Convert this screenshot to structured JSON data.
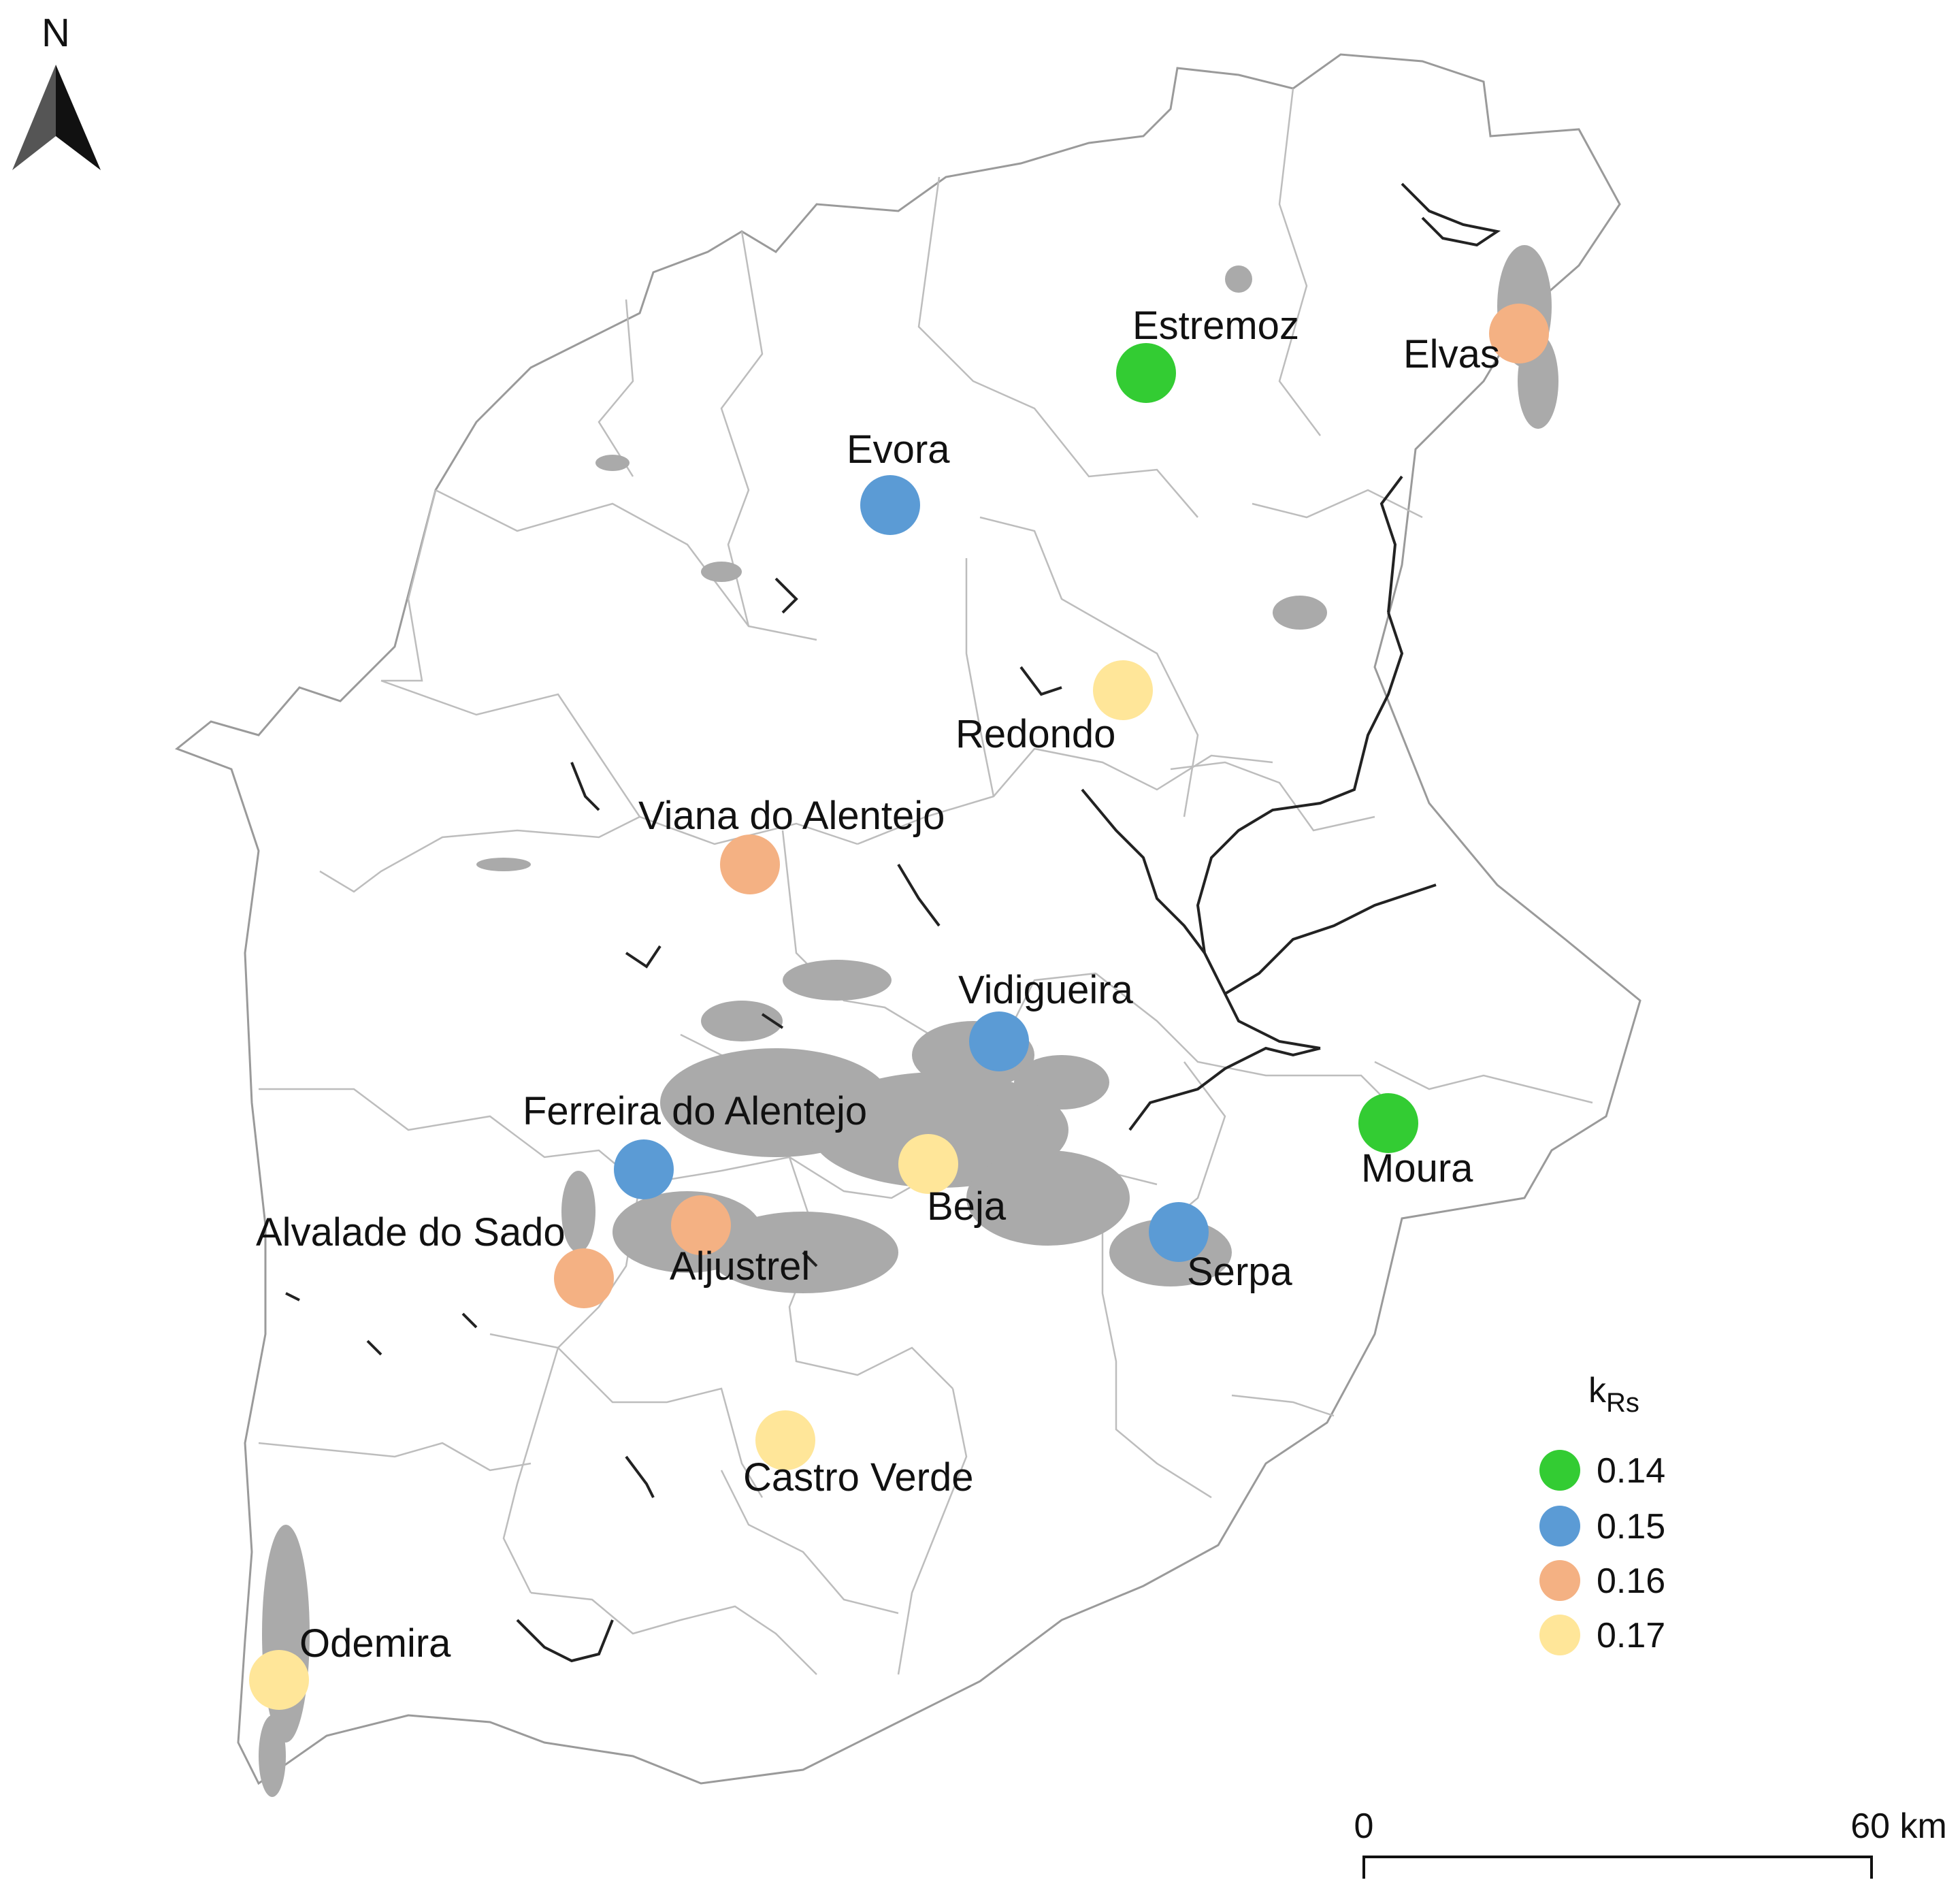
{
  "north_arrow": {
    "label": "N"
  },
  "legend": {
    "title_main": "k",
    "title_sub": "Rs",
    "items": [
      {
        "value": "0.14",
        "color": "#33cc33"
      },
      {
        "value": "0.15",
        "color": "#5b9bd5"
      },
      {
        "value": "0.16",
        "color": "#f4b183"
      },
      {
        "value": "0.17",
        "color": "#ffe699"
      }
    ]
  },
  "scale_bar": {
    "start": "0",
    "end": "60 km"
  },
  "stations": [
    {
      "name": "Estremoz",
      "kRs": 0.14
    },
    {
      "name": "Elvas",
      "kRs": 0.16
    },
    {
      "name": "Evora",
      "kRs": 0.15
    },
    {
      "name": "Redondo",
      "kRs": 0.17
    },
    {
      "name": "Viana do Alentejo",
      "kRs": 0.16
    },
    {
      "name": "Vidigueira",
      "kRs": 0.15
    },
    {
      "name": "Moura",
      "kRs": 0.14
    },
    {
      "name": "Ferreira do Alentejo",
      "kRs": 0.15
    },
    {
      "name": "Beja",
      "kRs": 0.17
    },
    {
      "name": "Aljustrel",
      "kRs": 0.16
    },
    {
      "name": "Alvalade do Sado",
      "kRs": 0.16
    },
    {
      "name": "Serpa",
      "kRs": 0.15
    },
    {
      "name": "Castro Verde",
      "kRs": 0.17
    },
    {
      "name": "Odemira",
      "kRs": 0.17
    }
  ]
}
